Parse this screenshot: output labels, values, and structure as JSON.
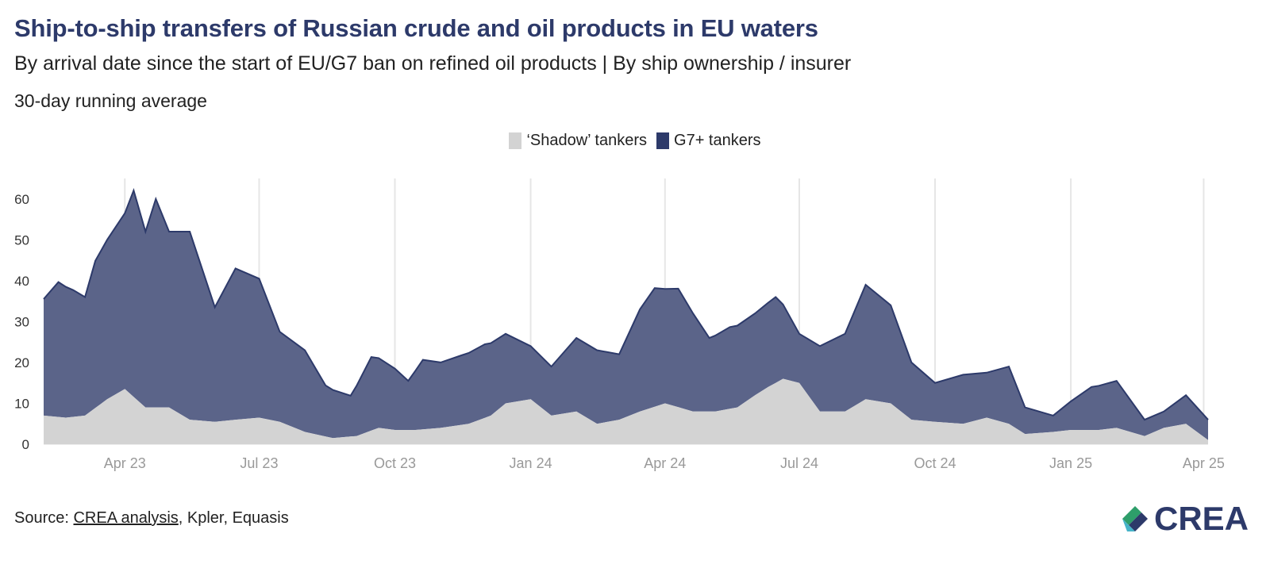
{
  "title": "Ship-to-ship transfers of Russian crude and oil products in EU waters",
  "subtitle": "By arrival date since the start of EU/G7 ban on refined oil products | By ship ownership / insurer",
  "note": "30-day running average",
  "legend": [
    {
      "label": "‘Shadow’ tankers",
      "color": "#d3d3d3"
    },
    {
      "label": "G7+ tankers",
      "color": "#2d3a6a"
    }
  ],
  "source": {
    "prefix": "Source: ",
    "link_text": "CREA analysis",
    "rest": ", Kpler, Equasis"
  },
  "logo": {
    "text": "CREA"
  },
  "colors": {
    "g7_fill": "#5b6489",
    "g7_line": "#2d3a6a",
    "shadow_fill": "#d3d3d3",
    "grid": "#e6e6e6"
  },
  "chart_data": {
    "type": "area",
    "stacked": true,
    "grid": true,
    "legend_position": "top-center",
    "ylim": [
      0,
      65
    ],
    "yticks": [
      0,
      10,
      20,
      30,
      40,
      50,
      60
    ],
    "xlim": [
      "2023-02-05",
      "2025-04-04"
    ],
    "xticks": [
      {
        "date": "2023-04-01",
        "label": "Apr 23"
      },
      {
        "date": "2023-07-01",
        "label": "Jul 23"
      },
      {
        "date": "2023-10-01",
        "label": "Oct 23"
      },
      {
        "date": "2024-01-01",
        "label": "Jan 24"
      },
      {
        "date": "2024-04-01",
        "label": "Apr 24"
      },
      {
        "date": "2024-07-01",
        "label": "Jul 24"
      },
      {
        "date": "2024-10-01",
        "label": "Oct 24"
      },
      {
        "date": "2025-01-01",
        "label": "Jan 25"
      },
      {
        "date": "2025-04-01",
        "label": "Apr 25"
      }
    ],
    "series": [
      {
        "name": "‘Shadow’ tankers",
        "color": "#d3d3d3",
        "points": [
          [
            "2023-02-05",
            7
          ],
          [
            "2023-02-20",
            6.5
          ],
          [
            "2023-03-05",
            7
          ],
          [
            "2023-03-20",
            11
          ],
          [
            "2023-04-01",
            13.5
          ],
          [
            "2023-04-15",
            9
          ],
          [
            "2023-05-01",
            9
          ],
          [
            "2023-05-15",
            6
          ],
          [
            "2023-06-01",
            5.5
          ],
          [
            "2023-06-15",
            6
          ],
          [
            "2023-07-01",
            6.5
          ],
          [
            "2023-07-15",
            5.5
          ],
          [
            "2023-08-01",
            3
          ],
          [
            "2023-08-20",
            1.5
          ],
          [
            "2023-09-05",
            2
          ],
          [
            "2023-09-20",
            4
          ],
          [
            "2023-10-01",
            3.5
          ],
          [
            "2023-10-15",
            3.5
          ],
          [
            "2023-11-01",
            4
          ],
          [
            "2023-11-20",
            5
          ],
          [
            "2023-12-05",
            7
          ],
          [
            "2023-12-15",
            10
          ],
          [
            "2024-01-01",
            11
          ],
          [
            "2024-01-15",
            7
          ],
          [
            "2024-02-01",
            8
          ],
          [
            "2024-02-15",
            5
          ],
          [
            "2024-03-01",
            6
          ],
          [
            "2024-03-15",
            8
          ],
          [
            "2024-04-01",
            10
          ],
          [
            "2024-04-20",
            8
          ],
          [
            "2024-05-05",
            8
          ],
          [
            "2024-05-20",
            9
          ],
          [
            "2024-06-01",
            12
          ],
          [
            "2024-06-10",
            14
          ],
          [
            "2024-06-20",
            16
          ],
          [
            "2024-07-01",
            15
          ],
          [
            "2024-07-15",
            8
          ],
          [
            "2024-08-01",
            8
          ],
          [
            "2024-08-15",
            11
          ],
          [
            "2024-09-01",
            10
          ],
          [
            "2024-09-15",
            6
          ],
          [
            "2024-10-01",
            5.5
          ],
          [
            "2024-10-20",
            5
          ],
          [
            "2024-11-05",
            6.5
          ],
          [
            "2024-11-20",
            5
          ],
          [
            "2024-12-01",
            2.5
          ],
          [
            "2024-12-20",
            3
          ],
          [
            "2025-01-01",
            3.5
          ],
          [
            "2025-01-20",
            3.5
          ],
          [
            "2025-02-01",
            4
          ],
          [
            "2025-02-20",
            2
          ],
          [
            "2025-03-05",
            4
          ],
          [
            "2025-03-20",
            5
          ],
          [
            "2025-04-04",
            1
          ]
        ]
      },
      {
        "name": "G7+ tankers",
        "color": "#2d3a6a",
        "points": [
          [
            "2023-02-05",
            28.5
          ],
          [
            "2023-02-15",
            33
          ],
          [
            "2023-02-25",
            31
          ],
          [
            "2023-03-05",
            29
          ],
          [
            "2023-03-12",
            36
          ],
          [
            "2023-03-20",
            39
          ],
          [
            "2023-04-01",
            43
          ],
          [
            "2023-04-07",
            50.5
          ],
          [
            "2023-04-15",
            43
          ],
          [
            "2023-04-22",
            51
          ],
          [
            "2023-05-01",
            43
          ],
          [
            "2023-05-15",
            46
          ],
          [
            "2023-06-01",
            28
          ],
          [
            "2023-06-15",
            37
          ],
          [
            "2023-07-01",
            34
          ],
          [
            "2023-07-15",
            22
          ],
          [
            "2023-08-01",
            20
          ],
          [
            "2023-08-15",
            12.5
          ],
          [
            "2023-09-01",
            10
          ],
          [
            "2023-09-15",
            18
          ],
          [
            "2023-10-01",
            15
          ],
          [
            "2023-10-10",
            12
          ],
          [
            "2023-10-20",
            17
          ],
          [
            "2023-11-01",
            16
          ],
          [
            "2023-11-15",
            17
          ],
          [
            "2023-12-01",
            18
          ],
          [
            "2023-12-15",
            17
          ],
          [
            "2024-01-01",
            13
          ],
          [
            "2024-01-15",
            12
          ],
          [
            "2024-02-01",
            18
          ],
          [
            "2024-02-15",
            18
          ],
          [
            "2024-03-01",
            16
          ],
          [
            "2024-03-15",
            25
          ],
          [
            "2024-03-25",
            29
          ],
          [
            "2024-04-01",
            28
          ],
          [
            "2024-04-10",
            29
          ],
          [
            "2024-04-20",
            24
          ],
          [
            "2024-05-01",
            18
          ],
          [
            "2024-05-15",
            20
          ],
          [
            "2024-06-01",
            20
          ],
          [
            "2024-06-15",
            21
          ],
          [
            "2024-07-01",
            12
          ],
          [
            "2024-07-15",
            16
          ],
          [
            "2024-08-01",
            19
          ],
          [
            "2024-08-15",
            28
          ],
          [
            "2024-09-01",
            24
          ],
          [
            "2024-09-15",
            14
          ],
          [
            "2024-10-01",
            9.5
          ],
          [
            "2024-10-20",
            12
          ],
          [
            "2024-11-05",
            11
          ],
          [
            "2024-11-20",
            14
          ],
          [
            "2024-12-01",
            6.5
          ],
          [
            "2024-12-20",
            4
          ],
          [
            "2025-01-01",
            7
          ],
          [
            "2025-01-15",
            10.5
          ],
          [
            "2025-02-01",
            11.5
          ],
          [
            "2025-02-20",
            4
          ],
          [
            "2025-03-05",
            4
          ],
          [
            "2025-03-20",
            7
          ],
          [
            "2025-04-04",
            5
          ]
        ]
      }
    ]
  }
}
